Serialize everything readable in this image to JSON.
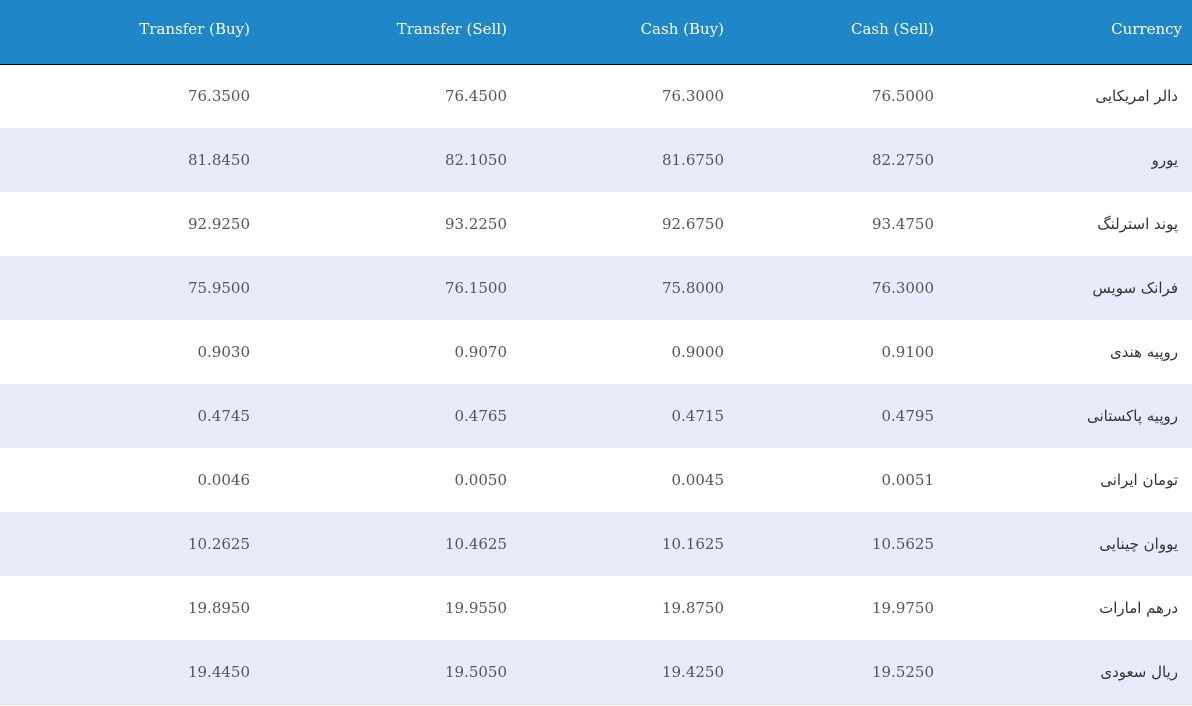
{
  "table": {
    "headers": {
      "transfer_buy": "Transfer (Buy)",
      "transfer_sell": "Transfer (Sell)",
      "cash_buy": "Cash (Buy)",
      "cash_sell": "Cash (Sell)",
      "currency": "Currency"
    },
    "rows": [
      {
        "transfer_buy": "76.3500",
        "transfer_sell": "76.4500",
        "cash_buy": "76.3000",
        "cash_sell": "76.5000",
        "currency": "دالر امریکایی"
      },
      {
        "transfer_buy": "81.8450",
        "transfer_sell": "82.1050",
        "cash_buy": "81.6750",
        "cash_sell": "82.2750",
        "currency": "یورو"
      },
      {
        "transfer_buy": "92.9250",
        "transfer_sell": "93.2250",
        "cash_buy": "92.6750",
        "cash_sell": "93.4750",
        "currency": "پوند استرلنگ"
      },
      {
        "transfer_buy": "75.9500",
        "transfer_sell": "76.1500",
        "cash_buy": "75.8000",
        "cash_sell": "76.3000",
        "currency": "فرانک سویس"
      },
      {
        "transfer_buy": "0.9030",
        "transfer_sell": "0.9070",
        "cash_buy": "0.9000",
        "cash_sell": "0.9100",
        "currency": "روپیه هندی"
      },
      {
        "transfer_buy": "0.4745",
        "transfer_sell": "0.4765",
        "cash_buy": "0.4715",
        "cash_sell": "0.4795",
        "currency": "روپیه پاکستانی"
      },
      {
        "transfer_buy": "0.0046",
        "transfer_sell": "0.0050",
        "cash_buy": "0.0045",
        "cash_sell": "0.0051",
        "currency": "تومان ایرانی"
      },
      {
        "transfer_buy": "10.2625",
        "transfer_sell": "10.4625",
        "cash_buy": "10.1625",
        "cash_sell": "10.5625",
        "currency": "یووان چینایی"
      },
      {
        "transfer_buy": "19.8950",
        "transfer_sell": "19.9550",
        "cash_buy": "19.8750",
        "cash_sell": "19.9750",
        "currency": "درهم امارات"
      },
      {
        "transfer_buy": "19.4450",
        "transfer_sell": "19.5050",
        "cash_buy": "19.4250",
        "cash_sell": "19.5250",
        "currency": "ریال سعودی"
      }
    ]
  },
  "colors": {
    "header_bg": "#1f87c8",
    "row_alt_bg": "#e9ebfa",
    "text": "#555555"
  }
}
